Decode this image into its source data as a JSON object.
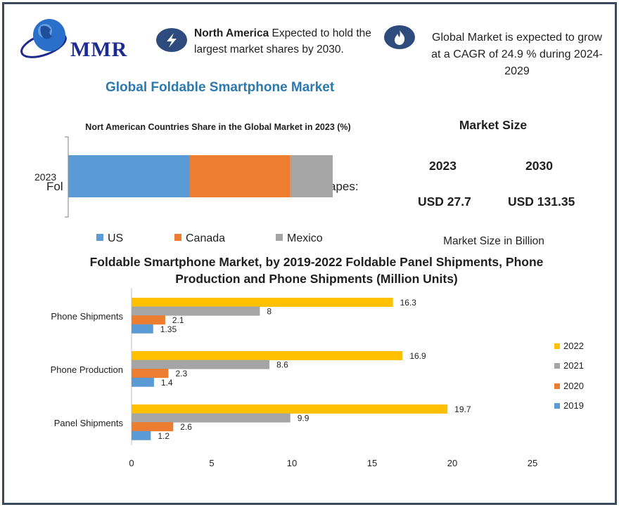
{
  "logo": {
    "text": "MMR"
  },
  "icons": {
    "lightning": "lightning-icon",
    "flame": "flame-icon",
    "globe": "globe-icon"
  },
  "info": {
    "region_bold": "North America",
    "region_rest": " Expected to hold the largest market shares by 2030.",
    "cagr_text": "Global Market is expected to grow at a CAGR of 24.9 % during 2024-2029"
  },
  "main_title": "Global Foldable Smartphone Market",
  "market_size": {
    "title": "Market Size",
    "year_a": "2023",
    "year_b": "2030",
    "value_a": "USD 27.7",
    "value_b": "USD 131.35",
    "unit": "Market Size in Billion"
  },
  "overlap": {
    "left": "Fol",
    "right": "apes:"
  },
  "colors": {
    "accent_blue": "#2c79b0",
    "us": "#5b9bd5",
    "canada": "#ed7d31",
    "mexico": "#a5a5a5",
    "y2019": "#5b9bd5",
    "y2020": "#ed7d31",
    "y2021": "#a5a5a5",
    "y2022": "#ffc000"
  },
  "chart_data": [
    {
      "type": "bar",
      "orientation": "horizontal",
      "stacked": true,
      "title": "Nort American Countries Share in the Global Market in 2023 (%)",
      "categories": [
        "2023"
      ],
      "series": [
        {
          "name": "US",
          "values": [
            46
          ]
        },
        {
          "name": "Canada",
          "values": [
            38
          ]
        },
        {
          "name": "Mexico",
          "values": [
            16
          ]
        }
      ],
      "legend": "bottom"
    },
    {
      "type": "bar",
      "orientation": "horizontal",
      "title": "Foldable Smartphone Market, by 2019-2022 Foldable Panel Shipments, Phone Production and Phone Shipments (Million Units)",
      "categories": [
        "Phone Shipments",
        "Phone Production",
        "Panel Shipments"
      ],
      "series": [
        {
          "name": "2022",
          "values": [
            16.3,
            16.9,
            19.7
          ]
        },
        {
          "name": "2021",
          "values": [
            8,
            8.6,
            9.9
          ]
        },
        {
          "name": "2020",
          "values": [
            2.1,
            2.3,
            2.6
          ]
        },
        {
          "name": "2019",
          "values": [
            1.35,
            1.4,
            1.2
          ]
        }
      ],
      "xlim": [
        0,
        25
      ],
      "xticks": [
        "0",
        "5",
        "10",
        "15",
        "20",
        "25"
      ],
      "legend_labels": [
        "2022",
        "2021",
        "2020",
        "2019"
      ],
      "legend": "right",
      "grid": false
    }
  ]
}
